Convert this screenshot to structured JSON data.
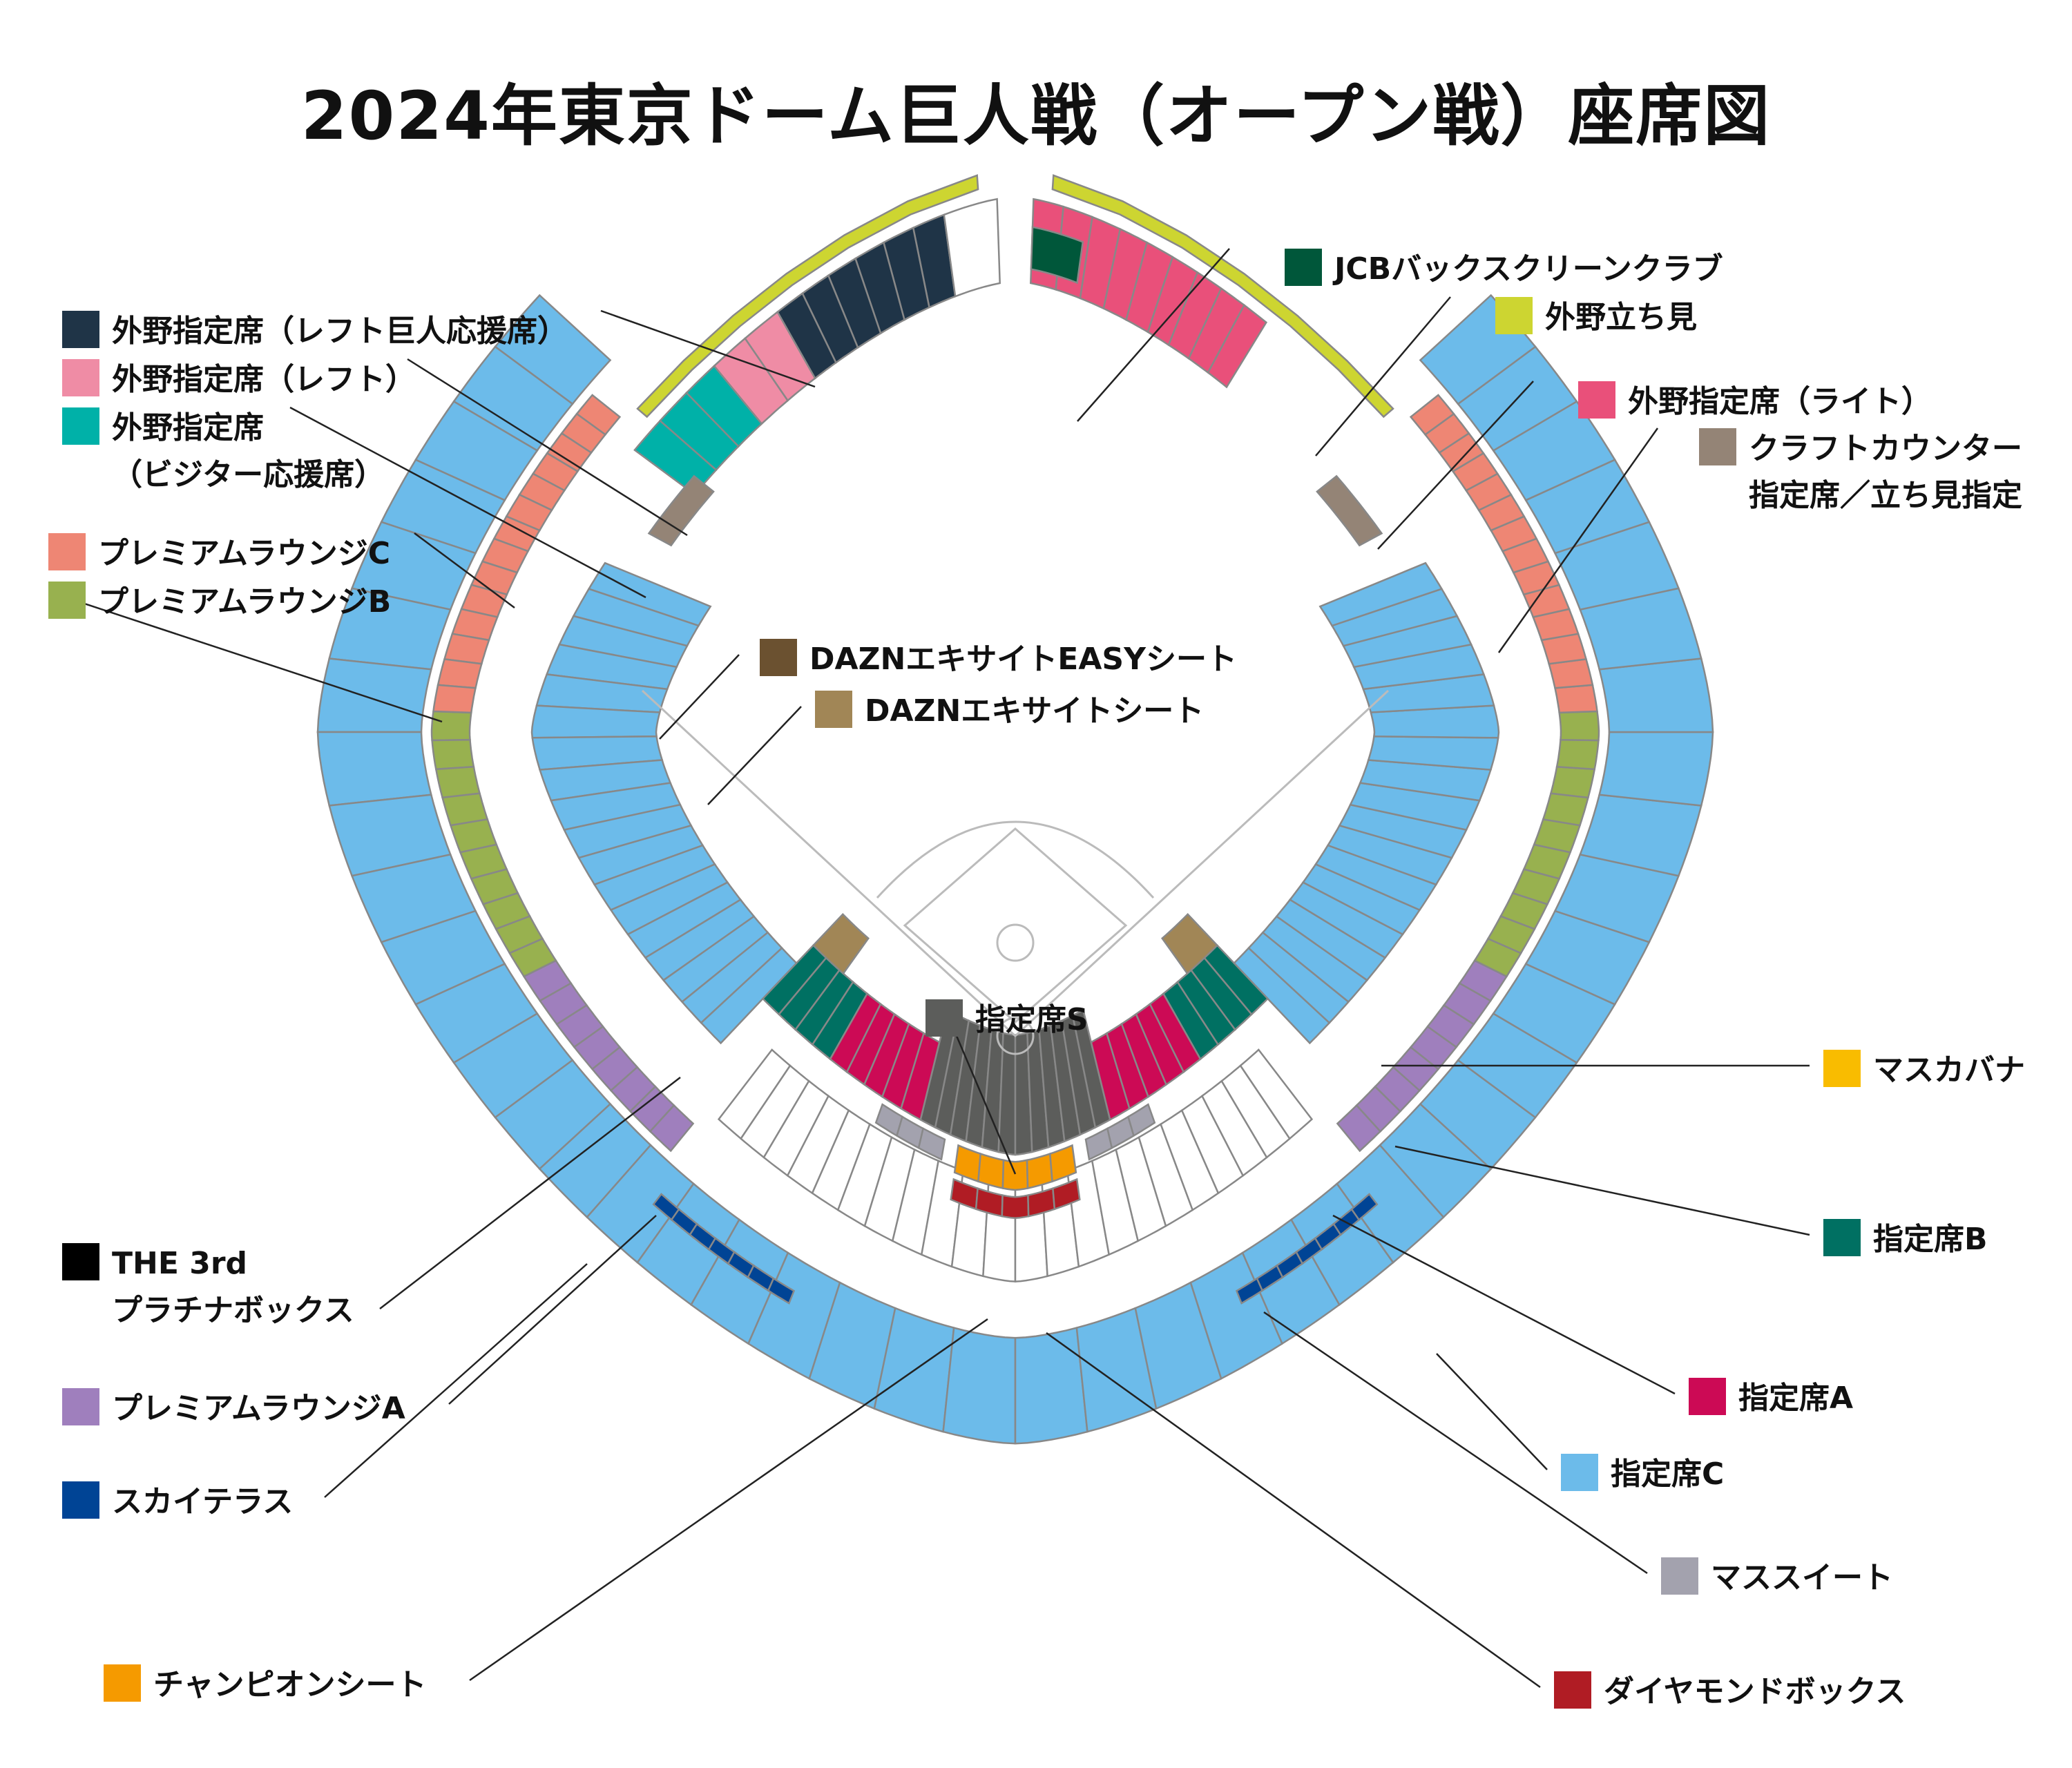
{
  "title": "2024年東京ドーム巨人戦（オープン戦）座席図",
  "legend": [
    {
      "id": "jcb",
      "label": "JCBバックスクリーンクラブ",
      "color": "#00573a"
    },
    {
      "id": "tachimi",
      "label": "外野立ち見",
      "color": "#cdd531"
    },
    {
      "id": "out_right",
      "label": "外野指定席（ライト）",
      "color": "#e9507a"
    },
    {
      "id": "craft",
      "label": "クラフトカウンター",
      "label2": "指定席／立ち見指定",
      "color": "#948476"
    },
    {
      "id": "out_left_g",
      "label": "外野指定席（レフト巨人応援席）",
      "color": "#1f3447"
    },
    {
      "id": "out_left",
      "label": "外野指定席（レフト）",
      "color": "#ef8ca5"
    },
    {
      "id": "visitor",
      "label": "外野指定席",
      "label2": "（ビジター応援席）",
      "color": "#00b1a8"
    },
    {
      "id": "plc",
      "label": "プレミアムラウンジC",
      "color": "#ee8674"
    },
    {
      "id": "plb",
      "label": "プレミアムラウンジB",
      "color": "#98b14f"
    },
    {
      "id": "dazn_easy",
      "label": "DAZNエキサイトEASYシート",
      "color": "#6b5130"
    },
    {
      "id": "dazn",
      "label": "DAZNエキサイトシート",
      "color": "#a18656"
    },
    {
      "id": "s",
      "label": "指定席S",
      "color": "#5c5d5b"
    },
    {
      "id": "masukabana",
      "label": "マスカバナ",
      "color": "#f9bc00"
    },
    {
      "id": "b",
      "label": "指定席B",
      "color": "#007062"
    },
    {
      "id": "a",
      "label": "指定席A",
      "color": "#cc0a55"
    },
    {
      "id": "c",
      "label": "指定席C",
      "color": "#6cbbea"
    },
    {
      "id": "suite",
      "label": "マススイート",
      "color": "#a3a2ae"
    },
    {
      "id": "diamond",
      "label": "ダイヤモンドボックス",
      "color": "#b01c24"
    },
    {
      "id": "champion",
      "label": "チャンピオンシート",
      "color": "#f59a00"
    },
    {
      "id": "sky",
      "label": "スカイテラス",
      "color": "#004495"
    },
    {
      "id": "pla",
      "label": "プレミアムラウンジA",
      "color": "#9f7fbd"
    },
    {
      "id": "third",
      "label": "THE 3rd",
      "label2": "プラチナボックス",
      "color": "#000000"
    }
  ]
}
